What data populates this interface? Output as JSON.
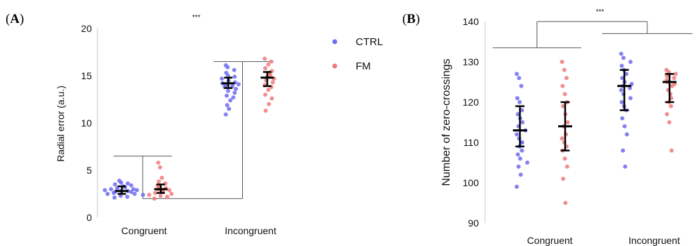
{
  "colors": {
    "CTRL": "#6f6cf0",
    "FM": "#f07a7a",
    "CTRL_bar": "#1e1aa8",
    "FM_bar": "#b51616",
    "black": "#000000"
  },
  "legend": [
    {
      "name": "CTRL",
      "color": "#6f6cf0"
    },
    {
      "name": "FM",
      "color": "#f07a7a"
    }
  ],
  "chart_data": [
    {
      "type": "scatter",
      "panel_label": "(A)",
      "ylabel": "Radial error (a.u.)",
      "ylim": [
        0,
        20
      ],
      "yticks": [
        0,
        5,
        10,
        15,
        20
      ],
      "categories": [
        "Congruent",
        "Incongruent"
      ],
      "significance": {
        "label": "***"
      },
      "series": [
        {
          "name": "CTRL",
          "groups": [
            {
              "category": "Congruent",
              "median": 2.8,
              "ci": [
                2.5,
                3.3
              ],
              "points": [
                3.9,
                3.7,
                3.6,
                3.5,
                3.4,
                3.3,
                3.2,
                3.1,
                3.0,
                3.0,
                2.9,
                2.9,
                2.8,
                2.8,
                2.7,
                2.7,
                2.6,
                2.5,
                2.5,
                2.4,
                2.3,
                2.2,
                2.1
              ]
            },
            {
              "category": "Incongruent",
              "median": 14.2,
              "ci": [
                13.7,
                14.8
              ],
              "points": [
                16.1,
                15.9,
                15.6,
                15.3,
                15.0,
                14.9,
                14.7,
                14.5,
                14.3,
                14.2,
                14.1,
                14.0,
                13.9,
                13.8,
                13.6,
                13.4,
                13.2,
                12.9,
                12.7,
                12.4,
                11.9,
                11.5,
                10.9
              ]
            }
          ]
        },
        {
          "name": "FM",
          "groups": [
            {
              "category": "Congruent",
              "median": 3.0,
              "ci": [
                2.6,
                3.5
              ],
              "points": [
                5.8,
                5.3,
                4.2,
                3.8,
                3.6,
                3.4,
                3.2,
                3.1,
                3.0,
                2.9,
                2.8,
                2.7,
                2.6,
                2.5,
                2.4,
                2.3,
                2.2,
                2.0
              ]
            },
            {
              "category": "Incongruent",
              "median": 14.8,
              "ci": [
                13.9,
                15.4
              ],
              "points": [
                16.8,
                16.5,
                16.2,
                15.8,
                15.5,
                15.3,
                15.1,
                14.9,
                14.7,
                14.5,
                14.3,
                14.0,
                13.8,
                13.5,
                13.0,
                12.6,
                12.0,
                11.3
              ]
            }
          ]
        }
      ]
    },
    {
      "type": "scatter",
      "panel_label": "(B)",
      "ylabel": "Number of zero-crossings",
      "ylim": [
        90,
        140
      ],
      "yticks": [
        90,
        100,
        110,
        120,
        130,
        140
      ],
      "categories": [
        "Congruent",
        "Incongruent"
      ],
      "significance": {
        "label": "***"
      },
      "series": [
        {
          "name": "CTRL",
          "groups": [
            {
              "category": "Congruent",
              "median": 113,
              "ci": [
                109,
                119
              ],
              "points": [
                127,
                126,
                124,
                121,
                120,
                118,
                117,
                116,
                115,
                114,
                113,
                112,
                111,
                110,
                110,
                109,
                108,
                107,
                106,
                105,
                104,
                102,
                99
              ]
            },
            {
              "category": "Incongruent",
              "median": 124,
              "ci": [
                118,
                128
              ],
              "points": [
                132,
                131,
                130,
                129,
                128,
                127,
                126,
                125,
                124.5,
                124,
                123.5,
                123,
                122,
                121,
                120,
                119,
                118,
                116,
                114,
                112,
                108,
                104
              ]
            }
          ]
        },
        {
          "name": "FM",
          "groups": [
            {
              "category": "Congruent",
              "median": 114,
              "ci": [
                108,
                120
              ],
              "points": [
                130,
                128,
                126,
                124,
                122,
                120,
                119,
                117,
                115,
                114,
                112,
                111,
                110,
                109,
                108,
                106,
                104,
                101,
                95
              ]
            },
            {
              "category": "Incongruent",
              "median": 125,
              "ci": [
                120,
                127
              ],
              "points": [
                128,
                127.5,
                127,
                126.5,
                126,
                125.5,
                125,
                124.5,
                124,
                123,
                122,
                121,
                120,
                119,
                117,
                115,
                108
              ]
            }
          ]
        }
      ]
    }
  ]
}
